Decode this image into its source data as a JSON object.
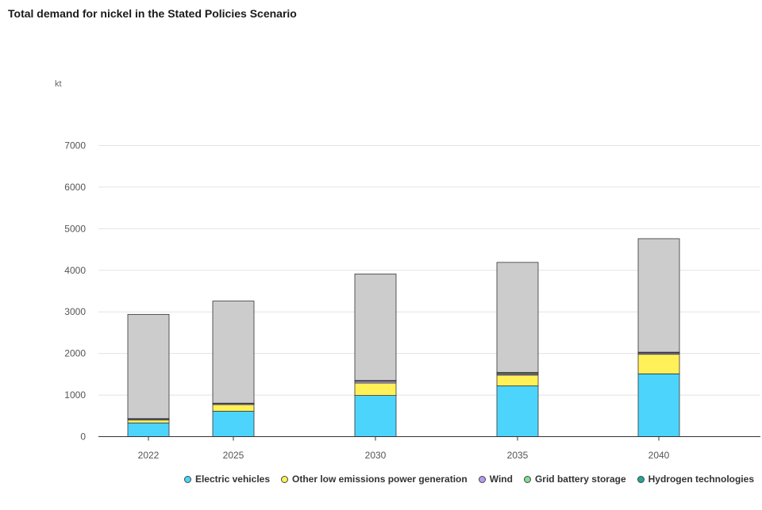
{
  "title": "Total demand for nickel in the Stated Policies Scenario",
  "chart_data": {
    "type": "bar",
    "stacked": true,
    "title": "Total demand for nickel in the Stated Policies Scenario",
    "unit": "kt",
    "categories": [
      "2022",
      "2025",
      "2030",
      "2035",
      "2040"
    ],
    "yticks": [
      "0",
      "1000",
      "2000",
      "3000",
      "4000",
      "5000",
      "6000",
      "7000"
    ],
    "ylim": [
      0,
      7000
    ],
    "grid": true,
    "legend_position": "bottom-right",
    "series": [
      {
        "name": "Electric vehicles",
        "color": "#4dd4fc",
        "values": [
          330,
          610,
          990,
          1220,
          1510
        ]
      },
      {
        "name": "Other low emissions power generation",
        "color": "#fff157",
        "values": [
          70,
          160,
          300,
          260,
          470
        ]
      },
      {
        "name": "Wind",
        "color": "#b79bf0",
        "values": [
          25,
          25,
          45,
          30,
          30
        ]
      },
      {
        "name": "Grid battery storage",
        "color": "#7ee08e",
        "values": [
          5,
          5,
          10,
          25,
          10
        ]
      },
      {
        "name": "Hydrogen technologies",
        "color": "#1fa896",
        "values": [
          5,
          5,
          5,
          10,
          10
        ]
      },
      {
        "color": "#cccccc",
        "values": [
          2505,
          2455,
          2560,
          2645,
          2730
        ]
      }
    ]
  }
}
